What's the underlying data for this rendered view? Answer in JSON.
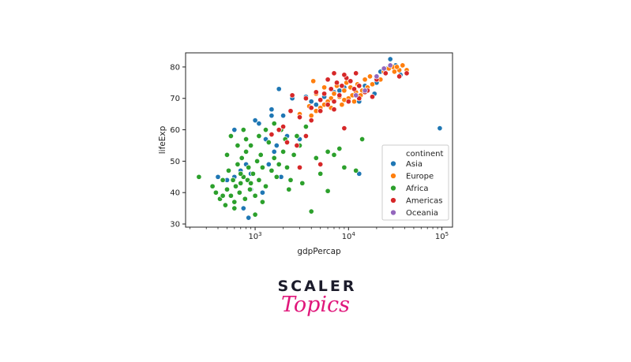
{
  "chart_data": {
    "type": "scatter",
    "title": "",
    "xlabel": "gdpPercap",
    "ylabel": "lifeExp",
    "x_scale": "log",
    "xlim": [
      180,
      130000
    ],
    "ylim": [
      29,
      84.5
    ],
    "x_ticks": [
      {
        "value": 1000,
        "base": "10",
        "exp": "3"
      },
      {
        "value": 10000,
        "base": "10",
        "exp": "4"
      },
      {
        "value": 100000,
        "base": "10",
        "exp": "5"
      }
    ],
    "y_ticks": [
      30,
      40,
      50,
      60,
      70,
      80
    ],
    "grid": false,
    "legend": {
      "title": "continent",
      "placement": "lower-right"
    },
    "series": [
      {
        "name": "Asia",
        "color": "#1f77b4",
        "points": [
          [
            28000,
            82.5
          ],
          [
            32000,
            80.5
          ],
          [
            26000,
            79.5
          ],
          [
            36000,
            77.5
          ],
          [
            22000,
            78.5
          ],
          [
            20000,
            75.0
          ],
          [
            15000,
            74.0
          ],
          [
            9000,
            73.5
          ],
          [
            7000,
            72.0
          ],
          [
            5500,
            70.5
          ],
          [
            4000,
            69.0
          ],
          [
            2500,
            70.0
          ],
          [
            1800,
            73.0
          ],
          [
            1500,
            66.5
          ],
          [
            1100,
            62.0
          ],
          [
            1000,
            63.0
          ],
          [
            1500,
            64.5
          ],
          [
            2000,
            64.5
          ],
          [
            1300,
            57.0
          ],
          [
            1700,
            55.0
          ],
          [
            2200,
            58.0
          ],
          [
            1600,
            53.0
          ],
          [
            800,
            49.0
          ],
          [
            900,
            46.0
          ],
          [
            700,
            47.0
          ],
          [
            600,
            45.0
          ],
          [
            500,
            44.0
          ],
          [
            400,
            45.0
          ],
          [
            900,
            41.0
          ],
          [
            1200,
            40.0
          ],
          [
            850,
            32.0
          ],
          [
            750,
            35.0
          ],
          [
            600,
            60.0
          ],
          [
            13000,
            46.0
          ],
          [
            95000,
            60.5
          ],
          [
            19000,
            71.5
          ],
          [
            11000,
            71.0
          ],
          [
            6000,
            68.5
          ],
          [
            3500,
            70.5
          ],
          [
            13000,
            69.0
          ],
          [
            4500,
            68.0
          ],
          [
            3000,
            57.0
          ],
          [
            1900,
            45.0
          ],
          [
            700,
            43.0
          ],
          [
            1400,
            49.0
          ],
          [
            8000,
            72.5
          ]
        ]
      },
      {
        "name": "Europe",
        "color": "#ff7f0e",
        "points": [
          [
            30000,
            80.0
          ],
          [
            35000,
            79.0
          ],
          [
            42000,
            79.0
          ],
          [
            33000,
            80.0
          ],
          [
            27000,
            79.5
          ],
          [
            24000,
            78.5
          ],
          [
            20000,
            76.5
          ],
          [
            18000,
            74.5
          ],
          [
            16000,
            73.5
          ],
          [
            14000,
            72.5
          ],
          [
            12000,
            72.0
          ],
          [
            11000,
            71.0
          ],
          [
            10000,
            70.0
          ],
          [
            9000,
            69.5
          ],
          [
            8000,
            70.5
          ],
          [
            7000,
            71.5
          ],
          [
            6500,
            70.0
          ],
          [
            6000,
            69.0
          ],
          [
            5500,
            68.0
          ],
          [
            5000,
            67.0
          ],
          [
            4500,
            66.0
          ],
          [
            4000,
            64.5
          ],
          [
            3800,
            67.5
          ],
          [
            3000,
            65.0
          ],
          [
            4500,
            71.5
          ],
          [
            5500,
            73.5
          ],
          [
            7500,
            74.0
          ],
          [
            9000,
            72.5
          ],
          [
            10500,
            73.5
          ],
          [
            12500,
            74.5
          ],
          [
            15000,
            76.0
          ],
          [
            17000,
            77.0
          ],
          [
            25000,
            78.0
          ],
          [
            31000,
            78.5
          ],
          [
            38000,
            80.5
          ],
          [
            8500,
            68.0
          ],
          [
            6500,
            67.0
          ],
          [
            11500,
            69.0
          ],
          [
            13500,
            71.0
          ],
          [
            22000,
            76.0
          ],
          [
            4200,
            75.5
          ],
          [
            9500,
            75.0
          ]
        ]
      },
      {
        "name": "Africa",
        "color": "#2ca02c",
        "points": [
          [
            250,
            45.0
          ],
          [
            350,
            42.0
          ],
          [
            380,
            40.0
          ],
          [
            420,
            38.0
          ],
          [
            450,
            44.0
          ],
          [
            480,
            36.0
          ],
          [
            500,
            41.0
          ],
          [
            520,
            47.0
          ],
          [
            550,
            39.0
          ],
          [
            580,
            44.0
          ],
          [
            600,
            35.0
          ],
          [
            620,
            42.0
          ],
          [
            650,
            49.0
          ],
          [
            680,
            40.0
          ],
          [
            700,
            43.0
          ],
          [
            720,
            51.0
          ],
          [
            750,
            45.0
          ],
          [
            780,
            38.0
          ],
          [
            800,
            53.0
          ],
          [
            830,
            44.0
          ],
          [
            850,
            48.0
          ],
          [
            880,
            41.0
          ],
          [
            900,
            55.0
          ],
          [
            950,
            46.0
          ],
          [
            1000,
            39.0
          ],
          [
            1050,
            50.0
          ],
          [
            1100,
            44.0
          ],
          [
            1150,
            52.0
          ],
          [
            1200,
            48.0
          ],
          [
            1300,
            42.0
          ],
          [
            1400,
            56.0
          ],
          [
            1500,
            47.0
          ],
          [
            1600,
            51.0
          ],
          [
            1700,
            45.0
          ],
          [
            1800,
            49.0
          ],
          [
            1900,
            60.0
          ],
          [
            2000,
            53.0
          ],
          [
            2200,
            48.0
          ],
          [
            2400,
            44.0
          ],
          [
            2600,
            52.0
          ],
          [
            2800,
            58.0
          ],
          [
            3000,
            55.0
          ],
          [
            3500,
            61.0
          ],
          [
            4000,
            34.0
          ],
          [
            4500,
            51.0
          ],
          [
            5000,
            46.0
          ],
          [
            6000,
            40.5
          ],
          [
            7000,
            52.0
          ],
          [
            8000,
            54.0
          ],
          [
            9000,
            48.0
          ],
          [
            12000,
            47.0
          ],
          [
            14000,
            57.0
          ],
          [
            500,
            52.0
          ],
          [
            550,
            58.0
          ],
          [
            650,
            55.0
          ],
          [
            800,
            57.0
          ],
          [
            1100,
            58.0
          ],
          [
            1300,
            60.0
          ],
          [
            1600,
            62.0
          ],
          [
            450,
            39.0
          ],
          [
            600,
            37.0
          ],
          [
            700,
            46.0
          ],
          [
            900,
            43.0
          ],
          [
            1000,
            33.0
          ],
          [
            1200,
            37.0
          ],
          [
            2300,
            41.0
          ],
          [
            3200,
            43.0
          ],
          [
            750,
            60.0
          ],
          [
            2100,
            57.0
          ],
          [
            6000,
            53.0
          ]
        ]
      },
      {
        "name": "Americas",
        "color": "#d62728",
        "points": [
          [
            2500,
            71.0
          ],
          [
            3500,
            70.0
          ],
          [
            4500,
            72.0
          ],
          [
            5500,
            71.5
          ],
          [
            6500,
            73.0
          ],
          [
            7500,
            75.0
          ],
          [
            8500,
            74.0
          ],
          [
            9500,
            76.5
          ],
          [
            10500,
            75.5
          ],
          [
            11500,
            73.0
          ],
          [
            13000,
            74.0
          ],
          [
            15000,
            72.0
          ],
          [
            18000,
            70.5
          ],
          [
            12000,
            78.0
          ],
          [
            9000,
            77.5
          ],
          [
            7000,
            78.0
          ],
          [
            6000,
            76.0
          ],
          [
            5000,
            69.5
          ],
          [
            4000,
            67.0
          ],
          [
            3000,
            64.0
          ],
          [
            2000,
            61.0
          ],
          [
            1800,
            60.0
          ],
          [
            1500,
            58.5
          ],
          [
            2200,
            56.0
          ],
          [
            2800,
            55.0
          ],
          [
            3500,
            58.0
          ],
          [
            4000,
            63.0
          ],
          [
            5000,
            66.0
          ],
          [
            6000,
            68.0
          ],
          [
            7000,
            69.0
          ],
          [
            8000,
            71.0
          ],
          [
            9000,
            60.5
          ],
          [
            3000,
            48.0
          ],
          [
            5000,
            49.0
          ],
          [
            7000,
            66.5
          ],
          [
            10000,
            69.0
          ],
          [
            13000,
            70.0
          ],
          [
            16000,
            72.5
          ],
          [
            20000,
            76.0
          ],
          [
            25000,
            78.0
          ],
          [
            42000,
            78.0
          ],
          [
            35000,
            77.0
          ],
          [
            2400,
            66.0
          ]
        ]
      },
      {
        "name": "Oceania",
        "color": "#9467bd",
        "points": [
          [
            24000,
            79.5
          ],
          [
            20000,
            77.0
          ],
          [
            28000,
            80.5
          ],
          [
            15000,
            72.5
          ],
          [
            12000,
            71.0
          ]
        ]
      }
    ]
  },
  "logo": {
    "line1": "SCALER",
    "line2": "Topics"
  }
}
